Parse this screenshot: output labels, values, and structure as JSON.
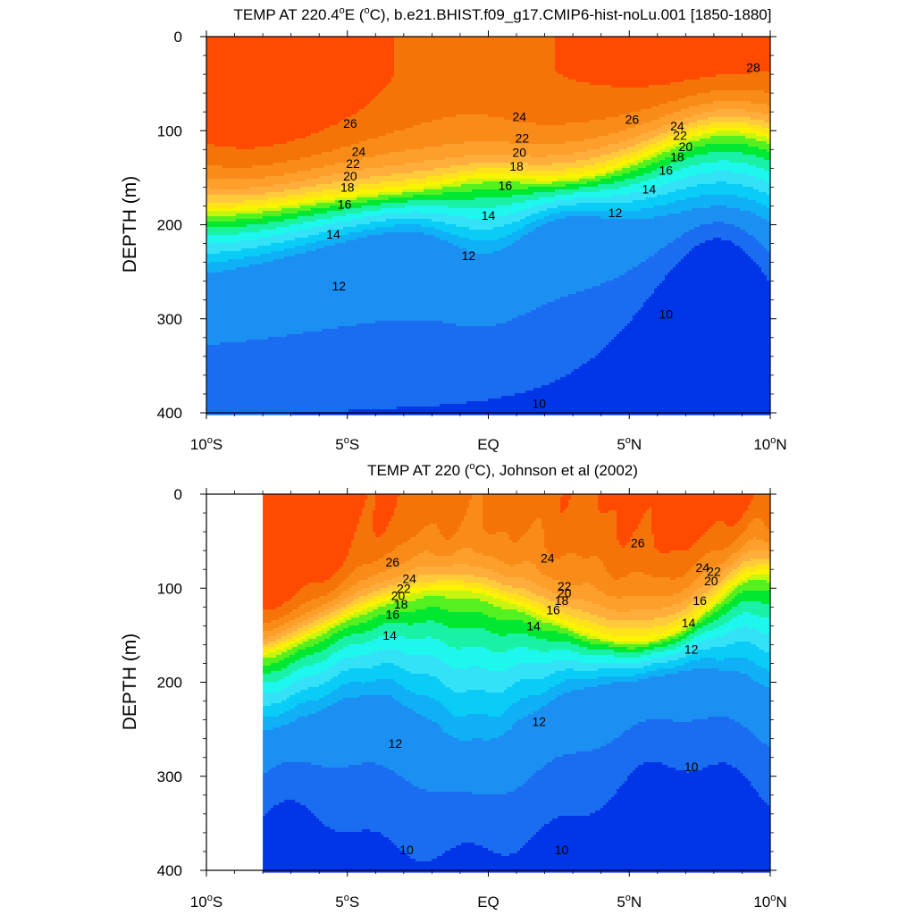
{
  "colors": {
    "levels": [
      "#0036e8",
      "#1a6cf0",
      "#1c8ff2",
      "#0fb0f5",
      "#09cdf6",
      "#34e2f8",
      "#1ef7ee",
      "#19f2a6",
      "#00e832",
      "#55f020",
      "#c8f510",
      "#fbf400",
      "#ffe31a",
      "#ffcb3b",
      "#ffae3c",
      "#fd9f2a",
      "#f98b19",
      "#f47409",
      "#ff4a00"
    ]
  },
  "chart_data": [
    {
      "type": "contour",
      "title": "TEMP AT 220.4°E (°C), b.e21.BHIST.f09_g17.CMIP6-hist-noLu.001 [1850-1880]",
      "title_parts": {
        "pre": "TEMP AT 220.4",
        "sup1": "o",
        "mid": "E (",
        "sup2": "o",
        "post": "C), b.e21.BHIST.f09_g17.CMIP6-hist-noLu.001 [1850-1880]"
      },
      "ylabel": "DEPTH (m)",
      "xlim": [
        -10,
        10
      ],
      "ylim": [
        400,
        0
      ],
      "data_xlim": [
        -10,
        10
      ],
      "x_ticks": [
        -10,
        -5,
        0,
        5,
        10
      ],
      "x_ticklabels": [
        {
          "num": "10",
          "sup": "o",
          "hemi": "S"
        },
        {
          "num": "5",
          "sup": "o",
          "hemi": "S"
        },
        {
          "num": "EQ",
          "sup": "",
          "hemi": ""
        },
        {
          "num": "5",
          "sup": "o",
          "hemi": "N"
        },
        {
          "num": "10",
          "sup": "o",
          "hemi": "N"
        }
      ],
      "y_ticks": [
        0,
        100,
        200,
        300,
        400
      ],
      "y_ticklabels": [
        "0",
        "100",
        "200",
        "300",
        "400"
      ],
      "contour_labels": [
        {
          "text": "26",
          "x": -4.9,
          "y": 92
        },
        {
          "text": "24",
          "x": -4.6,
          "y": 122
        },
        {
          "text": "22",
          "x": -4.8,
          "y": 135
        },
        {
          "text": "20",
          "x": -4.9,
          "y": 148
        },
        {
          "text": "18",
          "x": -5.0,
          "y": 160
        },
        {
          "text": "16",
          "x": -5.1,
          "y": 178
        },
        {
          "text": "14",
          "x": -5.5,
          "y": 210
        },
        {
          "text": "12",
          "x": -5.3,
          "y": 265
        },
        {
          "text": "24",
          "x": 1.1,
          "y": 85
        },
        {
          "text": "22",
          "x": 1.2,
          "y": 108
        },
        {
          "text": "20",
          "x": 1.1,
          "y": 123
        },
        {
          "text": "18",
          "x": 1.0,
          "y": 138
        },
        {
          "text": "16",
          "x": 0.6,
          "y": 158
        },
        {
          "text": "14",
          "x": 0.0,
          "y": 190
        },
        {
          "text": "12",
          "x": -0.7,
          "y": 233
        },
        {
          "text": "26",
          "x": 5.1,
          "y": 88
        },
        {
          "text": "24",
          "x": 6.7,
          "y": 95
        },
        {
          "text": "22",
          "x": 6.8,
          "y": 105
        },
        {
          "text": "20",
          "x": 7.0,
          "y": 117
        },
        {
          "text": "18",
          "x": 6.7,
          "y": 128
        },
        {
          "text": "16",
          "x": 6.3,
          "y": 142
        },
        {
          "text": "14",
          "x": 5.7,
          "y": 162
        },
        {
          "text": "12",
          "x": 4.5,
          "y": 187
        },
        {
          "text": "28",
          "x": 9.4,
          "y": 33
        },
        {
          "text": "10",
          "x": 6.3,
          "y": 295
        },
        {
          "text": "10",
          "x": 1.8,
          "y": 390
        }
      ]
    },
    {
      "type": "contour",
      "title": "TEMP AT 220 (°C), Johnson et al (2002)",
      "title_parts": {
        "pre": "TEMP AT 220 (",
        "sup1": "o",
        "mid": "C), Johnson et al (2002)",
        "sup2": "",
        "post": ""
      },
      "ylabel": "DEPTH (m)",
      "xlim": [
        -10,
        10
      ],
      "ylim": [
        400,
        0
      ],
      "data_xlim": [
        -8,
        10
      ],
      "x_ticks": [
        -10,
        -5,
        0,
        5,
        10
      ],
      "x_ticklabels": [
        {
          "num": "10",
          "sup": "o",
          "hemi": "S"
        },
        {
          "num": "5",
          "sup": "o",
          "hemi": "S"
        },
        {
          "num": "EQ",
          "sup": "",
          "hemi": ""
        },
        {
          "num": "5",
          "sup": "o",
          "hemi": "N"
        },
        {
          "num": "10",
          "sup": "o",
          "hemi": "N"
        }
      ],
      "y_ticks": [
        0,
        100,
        200,
        300,
        400
      ],
      "y_ticklabels": [
        "0",
        "100",
        "200",
        "300",
        "400"
      ],
      "contour_labels": [
        {
          "text": "26",
          "x": -3.4,
          "y": 72
        },
        {
          "text": "24",
          "x": -2.8,
          "y": 90
        },
        {
          "text": "22",
          "x": -3.0,
          "y": 100
        },
        {
          "text": "20",
          "x": -3.2,
          "y": 108
        },
        {
          "text": "18",
          "x": -3.1,
          "y": 117
        },
        {
          "text": "16",
          "x": -3.4,
          "y": 128
        },
        {
          "text": "14",
          "x": -3.5,
          "y": 150
        },
        {
          "text": "12",
          "x": -3.3,
          "y": 265
        },
        {
          "text": "10",
          "x": -2.9,
          "y": 378
        },
        {
          "text": "24",
          "x": 2.1,
          "y": 68
        },
        {
          "text": "22",
          "x": 2.7,
          "y": 98
        },
        {
          "text": "20",
          "x": 2.7,
          "y": 105
        },
        {
          "text": "18",
          "x": 2.6,
          "y": 113
        },
        {
          "text": "16",
          "x": 2.3,
          "y": 123
        },
        {
          "text": "14",
          "x": 1.6,
          "y": 140
        },
        {
          "text": "12",
          "x": 1.8,
          "y": 242
        },
        {
          "text": "10",
          "x": 2.6,
          "y": 378
        },
        {
          "text": "26",
          "x": 5.3,
          "y": 52
        },
        {
          "text": "24",
          "x": 7.6,
          "y": 78
        },
        {
          "text": "22",
          "x": 8.0,
          "y": 82
        },
        {
          "text": "20",
          "x": 7.9,
          "y": 92
        },
        {
          "text": "16",
          "x": 7.5,
          "y": 113
        },
        {
          "text": "14",
          "x": 7.1,
          "y": 137
        },
        {
          "text": "12",
          "x": 7.2,
          "y": 165
        },
        {
          "text": "10",
          "x": 7.2,
          "y": 290
        }
      ]
    }
  ]
}
